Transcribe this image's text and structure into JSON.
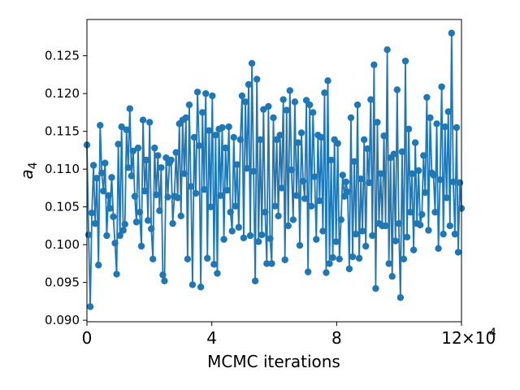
{
  "chart_data": {
    "type": "line",
    "markers": true,
    "xlabel": "MCMC iterations",
    "ylabel": "a",
    "ylabel_subscript": "4",
    "x_offset_label": "×10",
    "x_offset_exponent": "4",
    "xlim": [
      0,
      12
    ],
    "ylim": [
      0.0898,
      0.1298
    ],
    "x_scale_note": "x axis values in units of 10^4 iterations",
    "xticks": [
      0,
      4,
      8,
      12
    ],
    "xtick_labels": [
      "0",
      "4",
      "8",
      "12"
    ],
    "yticks": [
      0.09,
      0.095,
      0.1,
      0.105,
      0.11,
      0.115,
      0.12,
      0.125
    ],
    "ytick_labels": [
      "0.090",
      "0.095",
      "0.100",
      "0.105",
      "0.110",
      "0.115",
      "0.120",
      "0.125"
    ],
    "grid": false,
    "colors": {
      "series": "#1f77b4"
    },
    "series": [
      {
        "values": [
          0.1132,
          0.1013,
          0.0918,
          0.1042,
          0.1105,
          0.1028,
          0.1088,
          0.0973,
          0.1158,
          0.1095,
          0.1071,
          0.1108,
          0.1012,
          0.1065,
          0.1048,
          0.1089,
          0.1037,
          0.1002,
          0.0961,
          0.1133,
          0.1012,
          0.1156,
          0.1019,
          0.1027,
          0.1152,
          0.1102,
          0.118,
          0.1091,
          0.1124,
          0.1064,
          0.103,
          0.1128,
          0.1043,
          0.0998,
          0.1165,
          0.1071,
          0.1112,
          0.1032,
          0.1162,
          0.1021,
          0.0981,
          0.1128,
          0.1066,
          0.1118,
          0.1045,
          0.1102,
          0.096,
          0.0952,
          0.1115,
          0.1063,
          0.1108,
          0.1112,
          0.1028,
          0.1064,
          0.1122,
          0.1062,
          0.116,
          0.1038,
          0.1165,
          0.1094,
          0.1168,
          0.0981,
          0.1185,
          0.1077,
          0.0947,
          0.1142,
          0.1068,
          0.1202,
          0.1131,
          0.0944,
          0.1175,
          0.1073,
          0.12,
          0.0982,
          0.1151,
          0.105,
          0.1197,
          0.0974,
          0.1145,
          0.0962,
          0.1153,
          0.1065,
          0.1155,
          0.1007,
          0.1128,
          0.1072,
          0.1156,
          0.1043,
          0.1018,
          0.1142,
          0.1051,
          0.1106,
          0.1023,
          0.1139,
          0.1197,
          0.1009,
          0.1189,
          0.1101,
          0.1212,
          0.1012,
          0.124,
          0.1097,
          0.0952,
          0.1219,
          0.1004,
          0.1139,
          0.1013,
          0.1179,
          0.1043,
          0.0975,
          0.1183,
          0.1008,
          0.0975,
          0.1168,
          0.1051,
          0.1139,
          0.1038,
          0.1145,
          0.1075,
          0.1192,
          0.098,
          0.1178,
          0.1025,
          0.1204,
          0.1099,
          0.1033,
          0.1189,
          0.1065,
          0.1135,
          0.0999,
          0.1148,
          0.1084,
          0.1061,
          0.1191,
          0.0964,
          0.1185,
          0.1051,
          0.1175,
          0.109,
          0.1007,
          0.1145,
          0.1058,
          0.1142,
          0.1018,
          0.1201,
          0.0963,
          0.1217,
          0.0975,
          0.1112,
          0.0983,
          0.1139,
          0.1004,
          0.1134,
          0.0981,
          0.1033,
          0.1092,
          0.1064,
          0.1083,
          0.107,
          0.0968,
          0.1168,
          0.0984,
          0.111,
          0.1014,
          0.1185,
          0.0982,
          0.1087,
          0.1018,
          0.1139,
          0.0998,
          0.1127,
          0.1082,
          0.1192,
          0.1012,
          0.1238,
          0.0942,
          0.1162,
          0.1028,
          0.1094,
          0.1025,
          0.1144,
          0.1025,
          0.1258,
          0.0975,
          0.1115,
          0.0958,
          0.112,
          0.1005,
          0.1205,
          0.1028,
          0.093,
          0.1123,
          0.0981,
          0.1243,
          0.101,
          0.1153,
          0.1043,
          0.1094,
          0.0993,
          0.1135,
          0.1028,
          0.1098,
          0.1026,
          0.104,
          0.1118,
          0.1069,
          0.1195,
          0.1019,
          0.1168,
          0.1095,
          0.1092,
          0.1043,
          0.116,
          0.0995,
          0.1086,
          0.1209,
          0.1014,
          0.1156,
          0.1062,
          0.1176,
          0.1025,
          0.128,
          0.1083,
          0.1014,
          0.1155,
          0.099,
          0.1082,
          0.1048
        ]
      }
    ]
  }
}
